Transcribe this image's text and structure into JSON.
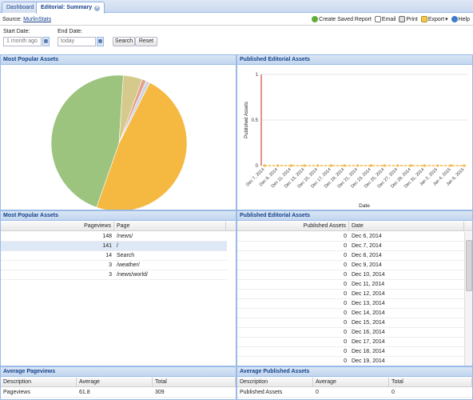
{
  "tabs": [
    {
      "label": "Dashboard",
      "active": false
    },
    {
      "label": "Editorial: Summary",
      "active": true
    }
  ],
  "source": {
    "label": "Source:",
    "value": "MurlinStats"
  },
  "actions": {
    "create": "Create Saved Report",
    "email": "Email",
    "print": "Print",
    "export": "Export",
    "help": "Help"
  },
  "filters": {
    "start_label": "Start Date:",
    "start_value": "1 month ago",
    "end_label": "End Date:",
    "end_placeholder": "today",
    "search_label": "Search",
    "reset_label": "Reset"
  },
  "panels": {
    "pie_title": "Most Popular Assets",
    "line_title": "Published Editorial Assets",
    "table1_title": "Most Popular Assets",
    "table2_title": "Published Editorial Assets",
    "avg1_title": "Average Pageviews",
    "avg2_title": "Average Published Assets"
  },
  "pie": {
    "slices": [
      {
        "page": "/news/",
        "value": 148,
        "color": "#f5b942"
      },
      {
        "page": "/",
        "value": 141,
        "color": "#9dc47f"
      },
      {
        "page": "Search",
        "value": 14,
        "color": "#d6c98c"
      },
      {
        "page": "/weather/",
        "value": 3,
        "color": "#e6a08a"
      },
      {
        "page": "/news/world/",
        "value": 3,
        "color": "#cfd6e3"
      }
    ]
  },
  "chart_data": {
    "type": "line",
    "ylabel": "Published Assets",
    "xlabel": "Date",
    "ylim": [
      0,
      1
    ],
    "yticks": [
      "0",
      "0.5",
      "1"
    ],
    "x": [
      "Dec 7, 2014",
      "Dec 9, 2014",
      "Dec 11, 2014",
      "Dec 13, 2014",
      "Dec 15, 2014",
      "Dec 17, 2014",
      "Dec 19, 2014",
      "Dec 21, 2014",
      "Dec 23, 2014",
      "Dec 25, 2014",
      "Dec 27, 2014",
      "Dec 29, 2014",
      "Dec 31, 2014",
      "Jan 2, 2015",
      "Jan 4, 2015",
      "Jan 6, 2015"
    ],
    "series": [
      {
        "values": [
          0,
          0,
          0,
          0,
          0,
          0,
          0,
          0,
          0,
          0,
          0,
          0,
          0,
          0,
          0,
          0
        ],
        "color": "#f5b942"
      }
    ]
  },
  "table1": {
    "headers": [
      "Pageviews",
      "Page"
    ],
    "rows": [
      {
        "pageviews": "148",
        "page": "/news/",
        "selected": false
      },
      {
        "pageviews": "141",
        "page": "/",
        "selected": true
      },
      {
        "pageviews": "14",
        "page": "Search",
        "selected": false
      },
      {
        "pageviews": "3",
        "page": "/weather/",
        "selected": false
      },
      {
        "pageviews": "3",
        "page": "/news/world/",
        "selected": false
      }
    ]
  },
  "table2": {
    "headers": [
      "Published Assets",
      "Date"
    ],
    "rows": [
      {
        "value": "0",
        "date": "Dec 6, 2014"
      },
      {
        "value": "0",
        "date": "Dec 7, 2014"
      },
      {
        "value": "0",
        "date": "Dec 8, 2014"
      },
      {
        "value": "0",
        "date": "Dec 9, 2014"
      },
      {
        "value": "0",
        "date": "Dec 10, 2014"
      },
      {
        "value": "0",
        "date": "Dec 11, 2014"
      },
      {
        "value": "0",
        "date": "Dec 12, 2014"
      },
      {
        "value": "0",
        "date": "Dec 13, 2014"
      },
      {
        "value": "0",
        "date": "Dec 14, 2014"
      },
      {
        "value": "0",
        "date": "Dec 15, 2014"
      },
      {
        "value": "0",
        "date": "Dec 16, 2014"
      },
      {
        "value": "0",
        "date": "Dec 17, 2014"
      },
      {
        "value": "0",
        "date": "Dec 18, 2014"
      },
      {
        "value": "0",
        "date": "Dec 19, 2014"
      }
    ]
  },
  "avg1": {
    "headers": [
      "Description",
      "Average",
      "Total"
    ],
    "row": {
      "description": "Pageviews",
      "average": "61.8",
      "total": "309"
    }
  },
  "avg2": {
    "headers": [
      "Description",
      "Average",
      "Total"
    ],
    "row": {
      "description": "Published Assets",
      "average": "0",
      "total": "0"
    }
  },
  "colors": {
    "accent": "#15428b",
    "border": "#99bbe8",
    "header_bg": "#c2d6ef",
    "selected_row": "#dfe8f6"
  }
}
